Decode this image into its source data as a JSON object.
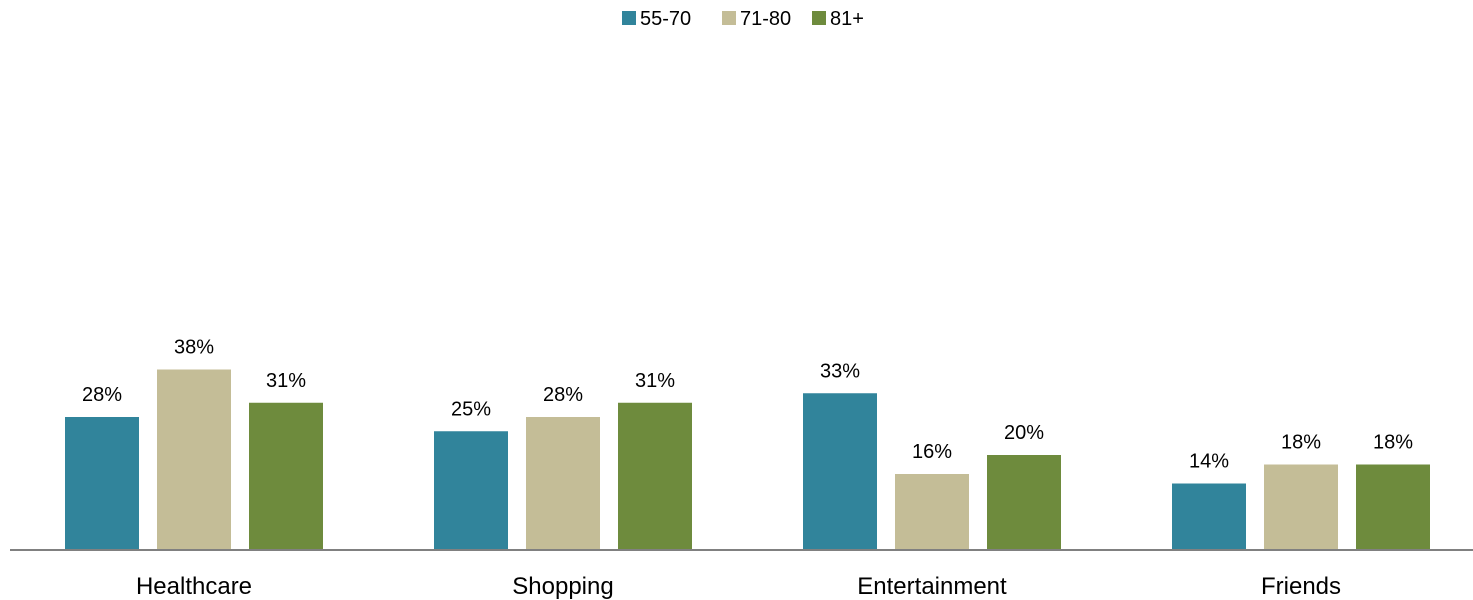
{
  "chart_data": {
    "type": "bar",
    "categories": [
      "Healthcare",
      "Shopping",
      "Entertainment",
      "Friends"
    ],
    "series": [
      {
        "name": "55-70",
        "color": "#31849B",
        "values": [
          28,
          25,
          33,
          14
        ]
      },
      {
        "name": "71-80",
        "color": "#C4BD97",
        "values": [
          38,
          28,
          16,
          18
        ]
      },
      {
        "name": "81+",
        "color": "#6E8B3D",
        "values": [
          31,
          31,
          20,
          18
        ]
      }
    ],
    "value_suffix": "%",
    "ylim": [
      0,
      100
    ],
    "grid": false,
    "legend_position": "top-center",
    "axis_color": "#808080"
  }
}
